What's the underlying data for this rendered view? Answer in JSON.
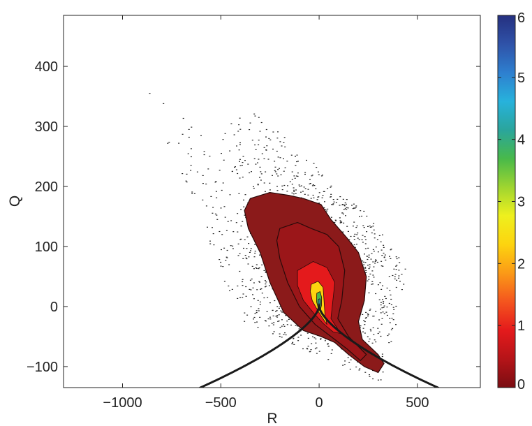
{
  "chart_data": {
    "type": "heatmap",
    "title": "",
    "xlabel": "R",
    "ylabel": "Q",
    "xlim": [
      -1300,
      820
    ],
    "ylim": [
      -135,
      485
    ],
    "x_ticks": [
      {
        "value": -1000,
        "label": "−1000"
      },
      {
        "value": -500,
        "label": "−500"
      },
      {
        "value": 0,
        "label": "0"
      },
      {
        "value": 500,
        "label": "500"
      }
    ],
    "y_ticks": [
      {
        "value": -100,
        "label": "−100"
      },
      {
        "value": 0,
        "label": "0"
      },
      {
        "value": 100,
        "label": "100"
      },
      {
        "value": 200,
        "label": "200"
      },
      {
        "value": 300,
        "label": "300"
      },
      {
        "value": 400,
        "label": "400"
      }
    ],
    "grid": false,
    "colorbar": {
      "range": [
        0,
        6
      ],
      "ticks": [
        {
          "value": 0,
          "label": "0"
        },
        {
          "value": 1,
          "label": "1"
        },
        {
          "value": 2,
          "label": "2"
        },
        {
          "value": 3,
          "label": "3"
        },
        {
          "value": 4,
          "label": "4"
        },
        {
          "value": 5,
          "label": "5"
        },
        {
          "value": 6,
          "label": "6"
        }
      ],
      "colors": [
        "#7a0d12",
        "#b51418",
        "#e41a1c",
        "#f4551e",
        "#fb9a17",
        "#fdd40f",
        "#eef01e",
        "#9fd530",
        "#48b94a",
        "#2aa59c",
        "#27b2dc",
        "#2e7fcf",
        "#2f52a8",
        "#25307f"
      ]
    },
    "contour_levels": [
      {
        "level": 0.05,
        "color": "#8b1a1a",
        "region": [
          [
            -350,
            180
          ],
          [
            -250,
            190
          ],
          [
            -150,
            185
          ],
          [
            -80,
            180
          ],
          [
            10,
            170
          ],
          [
            60,
            145
          ],
          [
            140,
            115
          ],
          [
            200,
            90
          ],
          [
            240,
            50
          ],
          [
            230,
            10
          ],
          [
            200,
            -25
          ],
          [
            220,
            -55
          ],
          [
            300,
            -80
          ],
          [
            330,
            -95
          ],
          [
            300,
            -110
          ],
          [
            230,
            -100
          ],
          [
            150,
            -80
          ],
          [
            80,
            -60
          ],
          [
            10,
            -50
          ],
          [
            -80,
            -40
          ],
          [
            -180,
            -10
          ],
          [
            -250,
            40
          ],
          [
            -300,
            90
          ],
          [
            -360,
            130
          ],
          [
            -380,
            160
          ]
        ]
      },
      {
        "level": 0.3,
        "color": "#9b1619",
        "region": [
          [
            -200,
            130
          ],
          [
            -110,
            140
          ],
          [
            -40,
            130
          ],
          [
            40,
            120
          ],
          [
            100,
            100
          ],
          [
            130,
            60
          ],
          [
            115,
            10
          ],
          [
            95,
            -20
          ],
          [
            150,
            -50
          ],
          [
            240,
            -80
          ],
          [
            210,
            -90
          ],
          [
            140,
            -70
          ],
          [
            60,
            -50
          ],
          [
            -20,
            -30
          ],
          [
            -100,
            0
          ],
          [
            -160,
            40
          ],
          [
            -200,
            80
          ],
          [
            -215,
            110
          ]
        ]
      },
      {
        "level": 1.0,
        "color": "#e41a1c",
        "region": [
          [
            -110,
            60
          ],
          [
            -30,
            75
          ],
          [
            40,
            65
          ],
          [
            80,
            40
          ],
          [
            70,
            10
          ],
          [
            60,
            -20
          ],
          [
            110,
            -45
          ],
          [
            70,
            -42
          ],
          [
            20,
            -28
          ],
          [
            -30,
            -10
          ],
          [
            -80,
            10
          ],
          [
            -110,
            35
          ]
        ]
      },
      {
        "level": 2.0,
        "color": "#fdd40f",
        "region": [
          [
            -40,
            37
          ],
          [
            -5,
            42
          ],
          [
            20,
            32
          ],
          [
            25,
            10
          ],
          [
            30,
            -15
          ],
          [
            40,
            -30
          ],
          [
            15,
            -18
          ],
          [
            -10,
            -5
          ],
          [
            -35,
            10
          ],
          [
            -45,
            25
          ]
        ]
      },
      {
        "level": 3.0,
        "color": "#48b94a",
        "region": [
          [
            -12,
            22
          ],
          [
            5,
            25
          ],
          [
            13,
            15
          ],
          [
            12,
            2
          ],
          [
            5,
            -8
          ],
          [
            -5,
            -2
          ],
          [
            -13,
            8
          ]
        ]
      },
      {
        "level": 4.0,
        "color": "#2a8fa0",
        "region": [
          [
            -4,
            12
          ],
          [
            4,
            13
          ],
          [
            7,
            5
          ],
          [
            3,
            -1
          ],
          [
            -3,
            1
          ],
          [
            -5,
            6
          ]
        ]
      }
    ],
    "scatter_envelope": [
      [
        -900,
        370
      ],
      [
        -600,
        290
      ],
      [
        -350,
        330
      ],
      [
        -150,
        275
      ],
      [
        150,
        190
      ],
      [
        450,
        70
      ],
      [
        330,
        -130
      ],
      [
        -400,
        -25
      ]
    ],
    "vieillefosse_line": {
      "description_free_series": true,
      "relation": "Q = -1.89 * |R|^(2/3)",
      "x_range": [
        -620,
        620
      ]
    }
  }
}
